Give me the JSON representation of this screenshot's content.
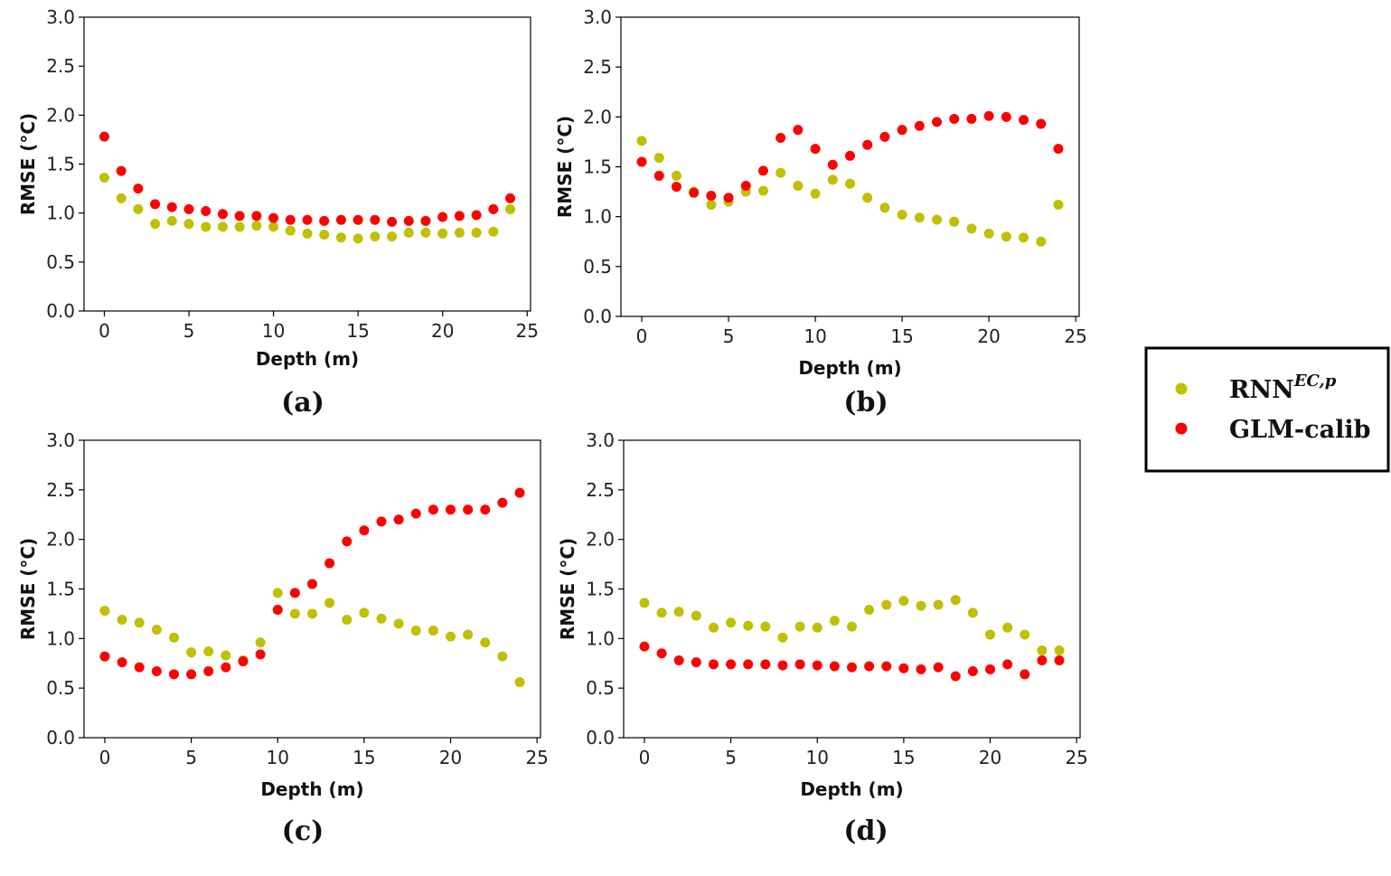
{
  "legend": {
    "series_names": [
      "RNN",
      "GLM-calib"
    ],
    "rnn_superscript": "EC,p",
    "colors": [
      "#c0c000",
      "#ff0000"
    ]
  },
  "chart_data": [
    {
      "type": "scatter",
      "panel_label": "(a)",
      "xlabel": "Depth (m)",
      "ylabel": "RMSE (°C)",
      "xlim": [
        -1.2,
        25.2
      ],
      "ylim": [
        0,
        3.0
      ],
      "xticks": [
        "0",
        "5",
        "10",
        "15",
        "20",
        "25"
      ],
      "yticks": [
        "0.0",
        "0.5",
        "1.0",
        "1.5",
        "2.0",
        "2.5",
        "3.0"
      ],
      "x": [
        0,
        1,
        2,
        3,
        4,
        5,
        6,
        7,
        8,
        9,
        10,
        11,
        12,
        13,
        14,
        15,
        16,
        17,
        18,
        19,
        20,
        21,
        22,
        23,
        24
      ],
      "series": [
        {
          "name": "RNN",
          "color": "#c0c000",
          "values": [
            1.36,
            1.15,
            1.04,
            0.89,
            0.92,
            0.89,
            0.86,
            0.86,
            0.86,
            0.87,
            0.86,
            0.82,
            0.79,
            0.78,
            0.75,
            0.74,
            0.76,
            0.76,
            0.8,
            0.8,
            0.79,
            0.8,
            0.8,
            0.81,
            1.04
          ]
        },
        {
          "name": "GLM-calib",
          "color": "#ff0000",
          "values": [
            1.78,
            1.43,
            1.25,
            1.09,
            1.06,
            1.04,
            1.02,
            0.99,
            0.97,
            0.97,
            0.95,
            0.93,
            0.93,
            0.92,
            0.93,
            0.93,
            0.93,
            0.91,
            0.92,
            0.92,
            0.96,
            0.97,
            0.98,
            1.04,
            1.15
          ]
        }
      ]
    },
    {
      "type": "scatter",
      "panel_label": "(b)",
      "xlabel": "Depth (m)",
      "ylabel": "RMSE (°C)",
      "xlim": [
        -1.2,
        25.2
      ],
      "ylim": [
        0,
        3.0
      ],
      "xticks": [
        "0",
        "5",
        "10",
        "15",
        "20",
        "25"
      ],
      "yticks": [
        "0.0",
        "0.5",
        "1.0",
        "1.5",
        "2.0",
        "2.5",
        "3.0"
      ],
      "x": [
        0,
        1,
        2,
        3,
        4,
        5,
        6,
        7,
        8,
        9,
        10,
        11,
        12,
        13,
        14,
        15,
        16,
        17,
        18,
        19,
        20,
        21,
        22,
        23,
        24
      ],
      "series": [
        {
          "name": "RNN",
          "color": "#c0c000",
          "values": [
            1.76,
            1.59,
            1.41,
            1.25,
            1.12,
            1.15,
            1.25,
            1.26,
            1.44,
            1.31,
            1.23,
            1.37,
            1.33,
            1.19,
            1.09,
            1.02,
            0.99,
            0.97,
            0.95,
            0.88,
            0.83,
            0.8,
            0.79,
            0.75,
            1.12
          ]
        },
        {
          "name": "GLM-calib",
          "color": "#ff0000",
          "values": [
            1.55,
            1.41,
            1.3,
            1.24,
            1.21,
            1.19,
            1.31,
            1.46,
            1.79,
            1.87,
            1.68,
            1.52,
            1.61,
            1.72,
            1.8,
            1.87,
            1.91,
            1.95,
            1.98,
            1.98,
            2.01,
            2.0,
            1.97,
            1.93,
            1.68
          ]
        }
      ]
    },
    {
      "type": "scatter",
      "panel_label": "(c)",
      "xlabel": "Depth (m)",
      "ylabel": "RMSE (°C)",
      "xlim": [
        -1.2,
        25.2
      ],
      "ylim": [
        0,
        3.0
      ],
      "xticks": [
        "0",
        "5",
        "10",
        "15",
        "20",
        "25"
      ],
      "yticks": [
        "0.0",
        "0.5",
        "1.0",
        "1.5",
        "2.0",
        "2.5",
        "3.0"
      ],
      "x": [
        0,
        1,
        2,
        3,
        4,
        5,
        6,
        7,
        8,
        9,
        10,
        11,
        12,
        13,
        14,
        15,
        16,
        17,
        18,
        19,
        20,
        21,
        22,
        23,
        24
      ],
      "series": [
        {
          "name": "RNN",
          "color": "#c0c000",
          "values": [
            1.28,
            1.19,
            1.16,
            1.09,
            1.01,
            0.86,
            0.87,
            0.83,
            0.78,
            0.96,
            1.46,
            1.25,
            1.25,
            1.36,
            1.19,
            1.26,
            1.2,
            1.15,
            1.08,
            1.08,
            1.02,
            1.04,
            0.96,
            0.82,
            0.56
          ]
        },
        {
          "name": "GLM-calib",
          "color": "#ff0000",
          "values": [
            0.82,
            0.76,
            0.71,
            0.67,
            0.64,
            0.64,
            0.67,
            0.71,
            0.77,
            0.84,
            1.29,
            1.46,
            1.55,
            1.76,
            1.98,
            2.09,
            2.18,
            2.2,
            2.26,
            2.3,
            2.3,
            2.3,
            2.3,
            2.37,
            2.47
          ]
        }
      ]
    },
    {
      "type": "scatter",
      "panel_label": "(d)",
      "xlabel": "Depth (m)",
      "ylabel": "RMSE (°C)",
      "xlim": [
        -1.2,
        25.2
      ],
      "ylim": [
        0,
        3.0
      ],
      "xticks": [
        "0",
        "5",
        "10",
        "15",
        "20",
        "25"
      ],
      "yticks": [
        "0.0",
        "0.5",
        "1.0",
        "1.5",
        "2.0",
        "2.5",
        "3.0"
      ],
      "x": [
        0,
        1,
        2,
        3,
        4,
        5,
        6,
        7,
        8,
        9,
        10,
        11,
        12,
        13,
        14,
        15,
        16,
        17,
        18,
        19,
        20,
        21,
        22,
        23,
        24
      ],
      "series": [
        {
          "name": "RNN",
          "color": "#c0c000",
          "values": [
            1.36,
            1.26,
            1.27,
            1.23,
            1.11,
            1.16,
            1.13,
            1.12,
            1.01,
            1.12,
            1.11,
            1.18,
            1.12,
            1.29,
            1.34,
            1.38,
            1.33,
            1.34,
            1.39,
            1.26,
            1.04,
            1.11,
            1.04,
            0.88,
            0.88
          ]
        },
        {
          "name": "GLM-calib",
          "color": "#ff0000",
          "values": [
            0.92,
            0.85,
            0.78,
            0.76,
            0.74,
            0.74,
            0.74,
            0.74,
            0.73,
            0.74,
            0.73,
            0.72,
            0.71,
            0.72,
            0.72,
            0.7,
            0.69,
            0.71,
            0.62,
            0.67,
            0.69,
            0.74,
            0.64,
            0.78,
            0.78
          ]
        }
      ]
    }
  ]
}
